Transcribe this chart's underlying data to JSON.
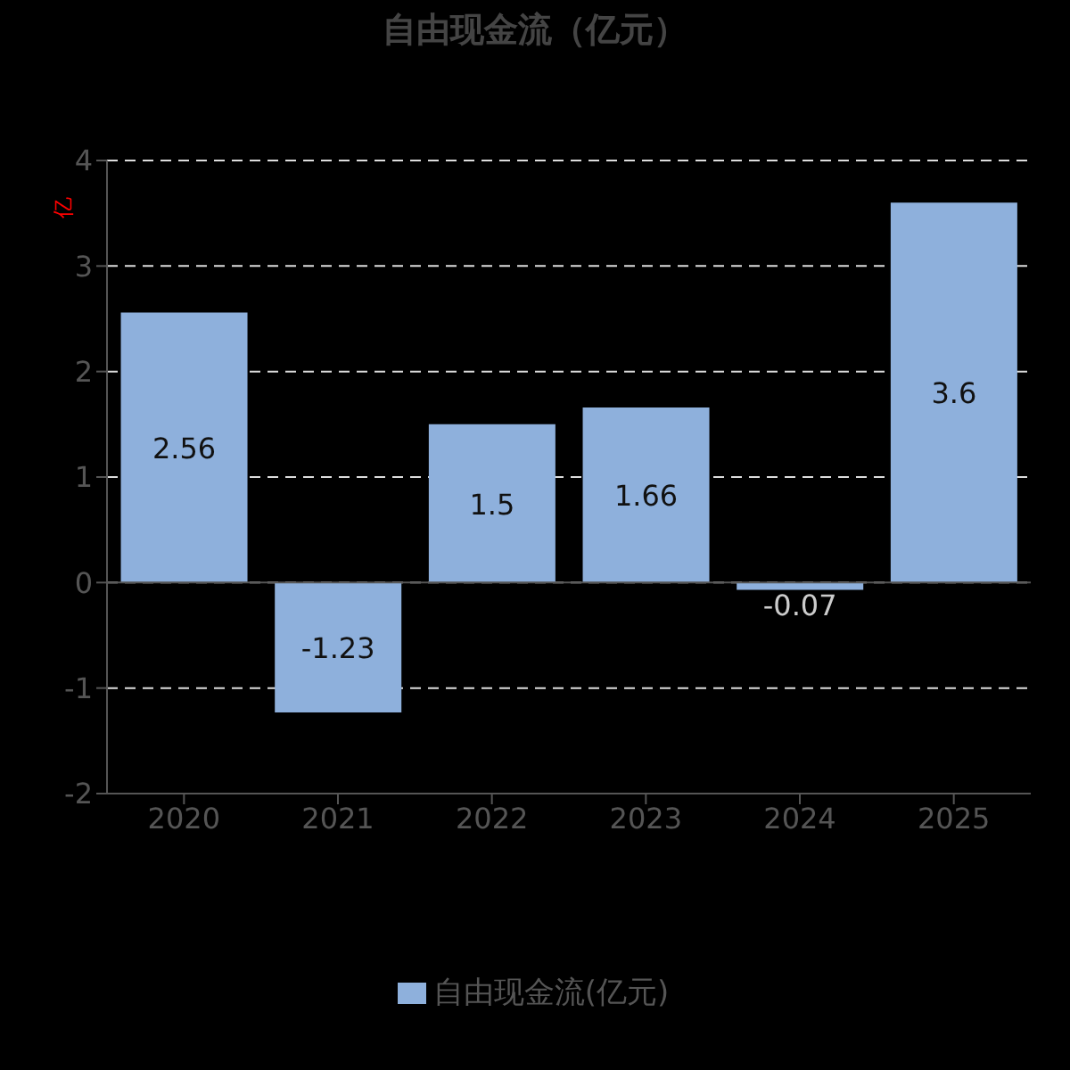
{
  "chart_data": {
    "type": "bar",
    "title": "自由现金流（亿元）",
    "ylabel": "亿",
    "categories": [
      "2020",
      "2021",
      "2022",
      "2023",
      "2024",
      "2025"
    ],
    "series": [
      {
        "name": "自由现金流(亿元)",
        "color": "#8eb0dc",
        "values": [
          2.56,
          -1.23,
          1.5,
          1.66,
          -0.07,
          3.6
        ]
      }
    ],
    "ylim": [
      -2,
      4
    ],
    "yticks": [
      -2,
      -1,
      0,
      1,
      2,
      3,
      4
    ],
    "grid": "y",
    "legend": "bottom",
    "data_labels": true
  }
}
